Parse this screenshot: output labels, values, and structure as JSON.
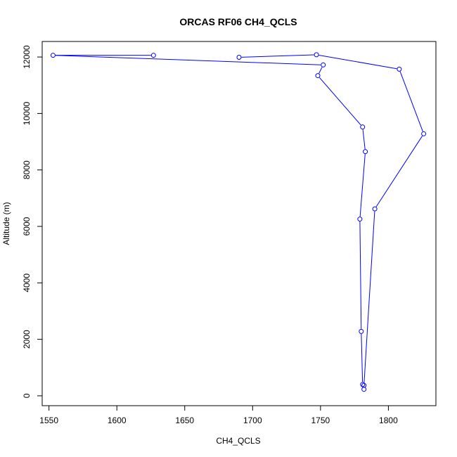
{
  "chart_data": {
    "type": "line",
    "title": "ORCAS RF06 CH4_QCLS",
    "xlabel": "CH4_QCLS",
    "ylabel": "Altitude (m)",
    "xlim": [
      1545,
      1835
    ],
    "ylim": [
      -350,
      12550
    ],
    "x_ticks": [
      1550,
      1600,
      1650,
      1700,
      1750,
      1800
    ],
    "y_ticks": [
      0,
      2000,
      4000,
      6000,
      8000,
      10000,
      12000
    ],
    "grid": false,
    "series_color": "#0000ff",
    "series": [
      {
        "x": [
          1627,
          1553,
          1752,
          1748,
          1781,
          1783,
          1779,
          1780,
          1781,
          1782,
          1782,
          1790,
          1826,
          1808,
          1747,
          1690
        ],
        "y": [
          12060,
          12060,
          11720,
          11340,
          9520,
          8650,
          6260,
          2280,
          400,
          230,
          370,
          6620,
          9280,
          11570,
          12080,
          11990
        ]
      }
    ]
  }
}
